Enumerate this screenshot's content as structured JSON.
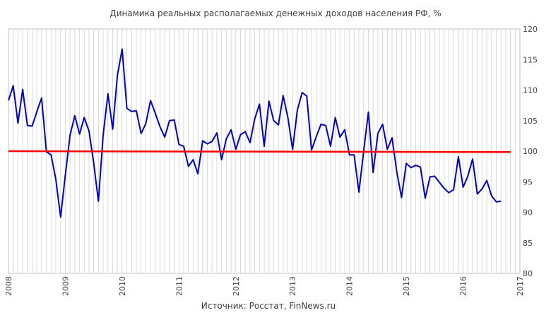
{
  "chart_data": {
    "type": "line",
    "title": "Динамика реальных располагаемых денежных доходов населения РФ, %",
    "source": "Источник: Росстат, FinNews.ru",
    "xlabel": "",
    "ylabel": "",
    "xlim": [
      2008,
      2017
    ],
    "ylim": [
      80,
      120
    ],
    "x_ticks": [
      "2008",
      "2009",
      "2010",
      "2011",
      "2012",
      "2013",
      "2014",
      "2015",
      "2016",
      "2017"
    ],
    "y_ticks": [
      "80",
      "85",
      "90",
      "95",
      "100",
      "105",
      "110",
      "115",
      "120"
    ],
    "grid": "vertical-monthly",
    "series": [
      {
        "color": "#0000cc",
        "x": [
          2008.0,
          2008.083,
          2008.167,
          2008.25,
          2008.333,
          2008.417,
          2008.5,
          2008.583,
          2008.667,
          2008.75,
          2008.833,
          2008.917,
          2009.0,
          2009.083,
          2009.167,
          2009.25,
          2009.333,
          2009.417,
          2009.5,
          2009.583,
          2009.667,
          2009.75,
          2009.833,
          2009.917,
          2010.0,
          2010.083,
          2010.167,
          2010.25,
          2010.333,
          2010.417,
          2010.5,
          2010.583,
          2010.667,
          2010.75,
          2010.833,
          2010.917,
          2011.0,
          2011.083,
          2011.167,
          2011.25,
          2011.333,
          2011.417,
          2011.5,
          2011.583,
          2011.667,
          2011.75,
          2011.833,
          2011.917,
          2012.0,
          2012.083,
          2012.167,
          2012.25,
          2012.333,
          2012.417,
          2012.5,
          2012.583,
          2012.667,
          2012.75,
          2012.833,
          2012.917,
          2013.0,
          2013.083,
          2013.167,
          2013.25,
          2013.333,
          2013.417,
          2013.5,
          2013.583,
          2013.667,
          2013.75,
          2013.833,
          2013.917,
          2014.0,
          2014.083,
          2014.167,
          2014.25,
          2014.333,
          2014.417,
          2014.5,
          2014.583,
          2014.667,
          2014.75,
          2014.833,
          2014.917,
          2015.0,
          2015.083,
          2015.167,
          2015.25,
          2015.333,
          2015.417,
          2015.5,
          2015.583,
          2015.667,
          2015.75,
          2015.833,
          2015.917,
          2016.0,
          2016.083,
          2016.167,
          2016.25,
          2016.333,
          2016.417,
          2016.5,
          2016.583,
          2016.667
        ],
        "values": [
          108.3,
          110.7,
          104.6,
          110.1,
          104.2,
          104.1,
          106.5,
          108.7,
          99.9,
          99.4,
          95.4,
          89.2,
          96.0,
          102.6,
          105.8,
          102.8,
          105.5,
          103.3,
          98.0,
          91.8,
          102.7,
          109.4,
          103.6,
          112.4,
          116.7,
          107.0,
          106.5,
          106.6,
          102.9,
          104.5,
          108.3,
          106.2,
          104.0,
          102.3,
          105.0,
          105.1,
          101.1,
          100.8,
          97.5,
          98.6,
          96.3,
          101.7,
          101.2,
          101.6,
          103.0,
          98.6,
          102.0,
          103.5,
          100.3,
          102.7,
          103.2,
          101.4,
          105.3,
          107.7,
          100.8,
          108.2,
          105.0,
          104.3,
          109.1,
          105.5,
          100.3,
          106.7,
          109.6,
          109.0,
          100.2,
          102.4,
          104.4,
          104.2,
          100.8,
          105.5,
          102.3,
          103.5,
          99.4,
          99.4,
          93.3,
          100.0,
          106.4,
          96.5,
          102.9,
          104.4,
          100.3,
          102.2,
          96.6,
          92.4,
          98.0,
          97.3,
          97.7,
          97.4,
          92.3,
          95.8,
          95.9,
          94.9,
          93.9,
          93.2,
          93.7,
          99.1,
          94.1,
          95.9,
          98.7,
          93.0,
          93.8,
          95.2,
          92.7,
          91.7,
          91.8
        ]
      },
      {
        "color": "#ff0000",
        "x": [
          2008.0,
          2016.833
        ],
        "values": [
          100.0,
          99.85
        ]
      }
    ]
  }
}
